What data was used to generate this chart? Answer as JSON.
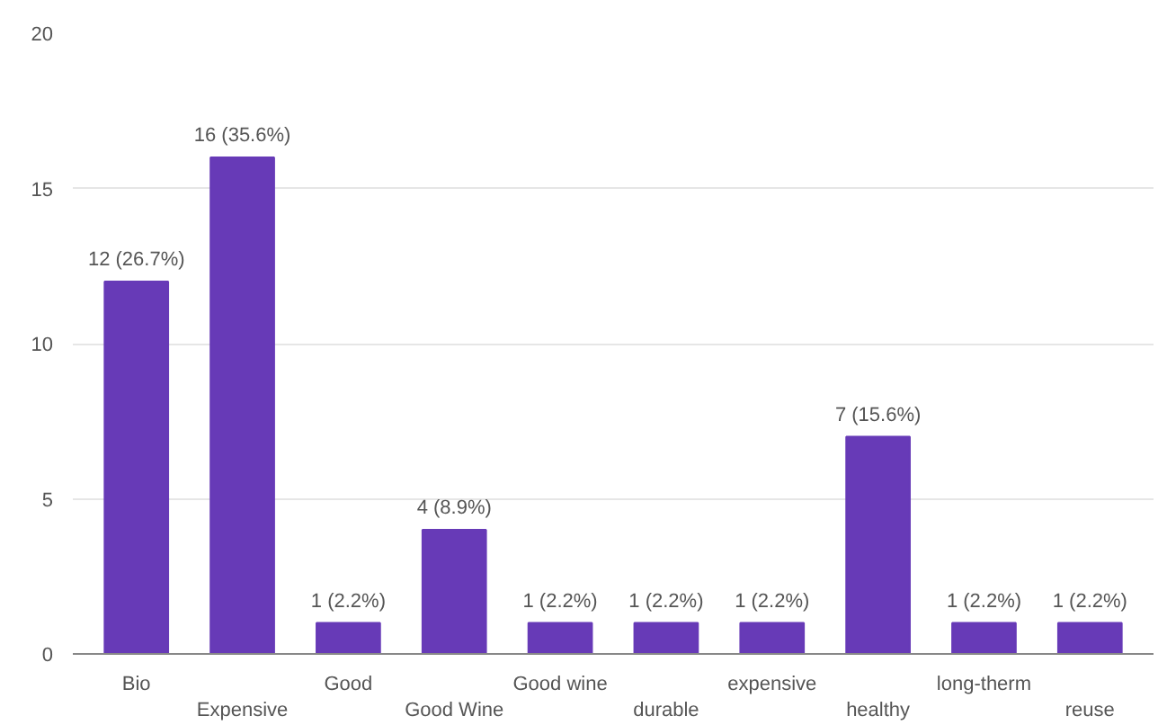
{
  "chart_data": {
    "type": "bar",
    "categories": [
      "Bio",
      "Expensive",
      "Good",
      "Good Wine",
      "Good wine",
      "durable",
      "expensive",
      "healthy",
      "long-therm",
      "reuse"
    ],
    "values": [
      12,
      16,
      1,
      4,
      1,
      1,
      1,
      7,
      1,
      1
    ],
    "value_labels": [
      "12 (26.7%)",
      "16 (35.6%)",
      "1 (2.2%)",
      "4 (8.9%)",
      "1 (2.2%)",
      "1 (2.2%)",
      "1 (2.2%)",
      "7 (15.6%)",
      "1 (2.2%)",
      "1 (2.2%)"
    ],
    "color": "#673ab7",
    "ylim": [
      0,
      20
    ],
    "yticks": [
      0,
      5,
      10,
      15,
      20
    ],
    "grid": "y"
  }
}
